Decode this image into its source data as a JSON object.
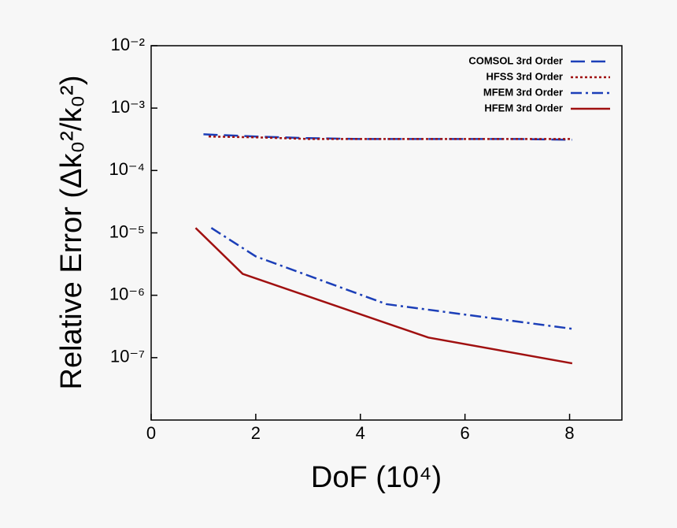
{
  "chart_data": {
    "type": "line",
    "xlabel": "DoF (10⁴)",
    "ylabel": "Relative Error (Δk₀²/k₀²)",
    "xlim": [
      0,
      9
    ],
    "xticks": [
      0,
      2,
      4,
      6,
      8
    ],
    "ylim": [
      1e-08,
      0.01
    ],
    "yscale": "log",
    "yticks": [
      {
        "value": 0.01,
        "label": "10⁻²"
      },
      {
        "value": 0.001,
        "label": "10⁻³"
      },
      {
        "value": 0.0001,
        "label": "10⁻⁴"
      },
      {
        "value": 1e-05,
        "label": "10⁻⁵"
      },
      {
        "value": 1e-06,
        "label": "10⁻⁶"
      },
      {
        "value": 1e-07,
        "label": "10⁻⁷"
      }
    ],
    "legend": "upper right",
    "series": [
      {
        "name": "COMSOL 3rd Order",
        "color": "#1c3fb8",
        "style": "dashed",
        "x": [
          1,
          2,
          3,
          4,
          5,
          6,
          7,
          8.05
        ],
        "values": [
          0.00038,
          0.00035,
          0.00033,
          0.00032,
          0.00032,
          0.00032,
          0.00032,
          0.00031
        ]
      },
      {
        "name": "HFSS 3rd Order",
        "color": "#a01010",
        "style": "dotted",
        "x": [
          1.1,
          2,
          3,
          4,
          5,
          6,
          7,
          8.05
        ],
        "values": [
          0.00035,
          0.00034,
          0.00032,
          0.00032,
          0.00032,
          0.00032,
          0.00032,
          0.00032
        ]
      },
      {
        "name": "MFEM 3rd Order",
        "color": "#1c3fb8",
        "style": "dashdot",
        "x": [
          1.15,
          2,
          4.5,
          8.05
        ],
        "values": [
          1.2e-05,
          4.2e-06,
          7.2e-07,
          2.9e-07
        ]
      },
      {
        "name": "HFEM 3rd Order",
        "color": "#a01010",
        "style": "solid",
        "x": [
          0.85,
          1.75,
          5.3,
          8.05
        ],
        "values": [
          1.2e-05,
          2.2e-06,
          2.1e-07,
          8.1e-08
        ]
      }
    ]
  }
}
